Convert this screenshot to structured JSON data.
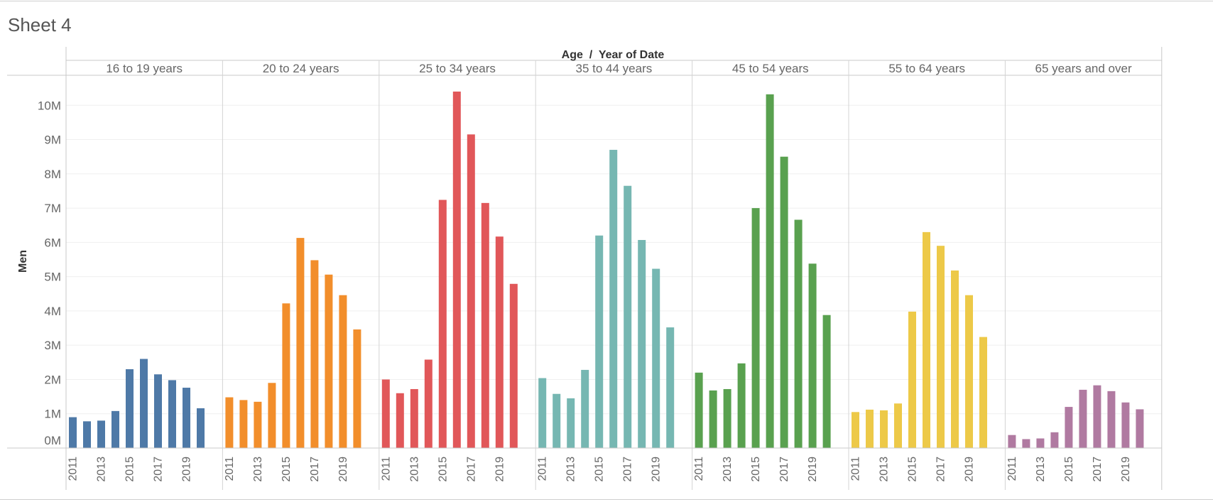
{
  "sheet": {
    "title": "Sheet 4"
  },
  "chart_data": {
    "type": "bar",
    "header_title": "Age  /  Year of Date",
    "ylabel": "Men",
    "ylim": [
      0,
      11000000
    ],
    "yticks": [
      0,
      1000000,
      2000000,
      3000000,
      4000000,
      5000000,
      6000000,
      7000000,
      8000000,
      9000000,
      10000000
    ],
    "ytick_labels": [
      "0M",
      "1M",
      "2M",
      "3M",
      "4M",
      "5M",
      "6M",
      "7M",
      "8M",
      "9M",
      "10M"
    ],
    "years": [
      2011,
      2012,
      2013,
      2014,
      2015,
      2016,
      2017,
      2018,
      2019,
      2020
    ],
    "xtick_labels": [
      "2011",
      "",
      "2013",
      "",
      "2015",
      "",
      "2017",
      "",
      "2019",
      ""
    ],
    "grid": true,
    "panels": [
      {
        "name": "16 to 19 years",
        "color": "#4e79a7",
        "values": [
          900000,
          780000,
          800000,
          1080000,
          2300000,
          2600000,
          2150000,
          1980000,
          1760000,
          1160000
        ]
      },
      {
        "name": "20 to 24 years",
        "color": "#f28e2b",
        "values": [
          1480000,
          1400000,
          1350000,
          1900000,
          4220000,
          6130000,
          5480000,
          5060000,
          4460000,
          3460000
        ]
      },
      {
        "name": "25 to 34 years",
        "color": "#e15759",
        "values": [
          2000000,
          1600000,
          1720000,
          2580000,
          7240000,
          10400000,
          9150000,
          7150000,
          6170000,
          4790000
        ]
      },
      {
        "name": "35 to 44 years",
        "color": "#76b7b2",
        "values": [
          2040000,
          1580000,
          1450000,
          2280000,
          6200000,
          8700000,
          7650000,
          6070000,
          5230000,
          3520000
        ]
      },
      {
        "name": "45 to 54 years",
        "color": "#59a14f",
        "values": [
          2200000,
          1680000,
          1720000,
          2470000,
          7000000,
          10320000,
          8500000,
          6660000,
          5380000,
          3880000
        ]
      },
      {
        "name": "55 to 64 years",
        "color": "#edc948",
        "values": [
          1050000,
          1120000,
          1100000,
          1300000,
          3980000,
          6300000,
          5900000,
          5180000,
          4460000,
          3240000
        ]
      },
      {
        "name": "65 years and over",
        "color": "#b07aa1",
        "values": [
          380000,
          260000,
          280000,
          460000,
          1200000,
          1700000,
          1830000,
          1660000,
          1330000,
          1130000
        ]
      }
    ]
  }
}
